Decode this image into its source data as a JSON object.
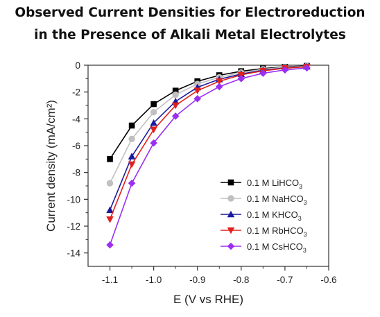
{
  "title_line1": "Observed Current Densities for Electroreduction",
  "title_line2": "in the Presence of Alkali Metal Electrolytes",
  "chart_data": {
    "type": "line",
    "title": "Observed Current Densities for Electroreduction in the Presence of Alkali Metal Electrolytes",
    "xlabel": "E (V vs RHE)",
    "ylabel": "Current density (mA/cm²)",
    "xlim": [
      -1.15,
      -0.6
    ],
    "ylim": [
      -15,
      0
    ],
    "xticks": [
      "-1.1",
      "-1.0",
      "-0.9",
      "-0.8",
      "-0.7",
      "-0.6"
    ],
    "yticks": [
      "0",
      "-2",
      "-4",
      "-6",
      "-8",
      "-10",
      "-12",
      "-14"
    ],
    "grid": false,
    "legend_position": "bottom-right",
    "x": [
      -1.1,
      -1.05,
      -1.0,
      -0.95,
      -0.9,
      -0.85,
      -0.8,
      -0.75,
      -0.7,
      -0.65
    ],
    "series": [
      {
        "name": "0.1 M LiHCO3",
        "label_main": "0.1 M LiHCO",
        "label_sub": "3",
        "color": "#000000",
        "marker": "square",
        "values": [
          -7.0,
          -4.5,
          -2.9,
          -1.9,
          -1.2,
          -0.75,
          -0.45,
          -0.25,
          -0.12,
          -0.05
        ]
      },
      {
        "name": "0.1 M NaHCO3",
        "label_main": "0.1 M NaHCO",
        "label_sub": "3",
        "color": "#c0c0c0",
        "marker": "circle",
        "values": [
          -8.8,
          -5.5,
          -3.5,
          -2.2,
          -1.4,
          -0.9,
          -0.55,
          -0.3,
          -0.15,
          -0.07
        ]
      },
      {
        "name": "0.1 M KHCO3",
        "label_main": "0.1 M KHCO",
        "label_sub": "3",
        "color": "#1a1a9e",
        "marker": "triangle-up",
        "values": [
          -10.8,
          -6.8,
          -4.3,
          -2.7,
          -1.65,
          -1.05,
          -0.65,
          -0.38,
          -0.2,
          -0.1
        ]
      },
      {
        "name": "0.1 M RbHCO3",
        "label_main": "0.1 M RbHCO",
        "label_sub": "3",
        "color": "#e0201c",
        "marker": "triangle-down",
        "values": [
          -11.5,
          -7.4,
          -4.8,
          -3.0,
          -1.9,
          -1.2,
          -0.72,
          -0.42,
          -0.22,
          -0.12
        ]
      },
      {
        "name": "0.1 M CsHCO3",
        "label_main": "0.1 M CsHCO",
        "label_sub": "3",
        "color": "#9b2ff0",
        "marker": "diamond",
        "values": [
          -13.4,
          -8.8,
          -5.8,
          -3.8,
          -2.5,
          -1.6,
          -1.0,
          -0.6,
          -0.35,
          -0.2
        ]
      }
    ]
  }
}
